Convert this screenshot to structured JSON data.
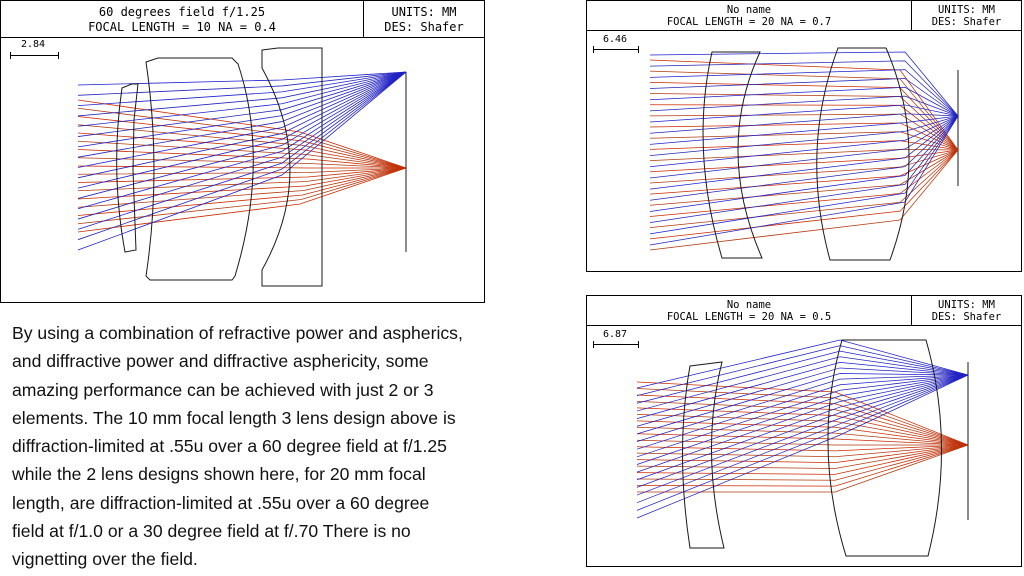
{
  "panels": [
    {
      "title1": "60 degrees field f/1.25",
      "title2": "FOCAL LENGTH = 10  NA = 0.4",
      "units": "UNITS: MM",
      "des": "DES: Shafer",
      "scale": "2.84"
    },
    {
      "title1": "No name",
      "title2": "FOCAL LENGTH = 20  NA = 0.7",
      "units": "UNITS: MM",
      "des": "DES: Shafer",
      "scale": "6.46"
    },
    {
      "title1": "No name",
      "title2": "FOCAL LENGTH = 20  NA = 0.5",
      "units": "UNITS: MM",
      "des": "DES: Shafer",
      "scale": "6.87"
    }
  ],
  "paragraph": [
    " By using a combination of refractive power and aspherics,",
    "and diffractive power and diffractive asphericity, some",
    "amazing performance can be achieved with just 2 or 3",
    "elements.  The 10 mm focal length 3 lens design above is",
    "diffraction-limited at .55u over a 60 degree field at f/1.25",
    "while the 2 lens designs shown here, for 20 mm focal",
    "length, are diffraction-limited at .55u over a 60 degree",
    "field at f/1.0 or a 30 degree field at f/.70   There is no",
    "vignetting over the field."
  ],
  "colors": {
    "field_off_axis": "#1f1fcf",
    "field_on_axis": "#cc2a00",
    "lens": "#1a1a1a"
  }
}
